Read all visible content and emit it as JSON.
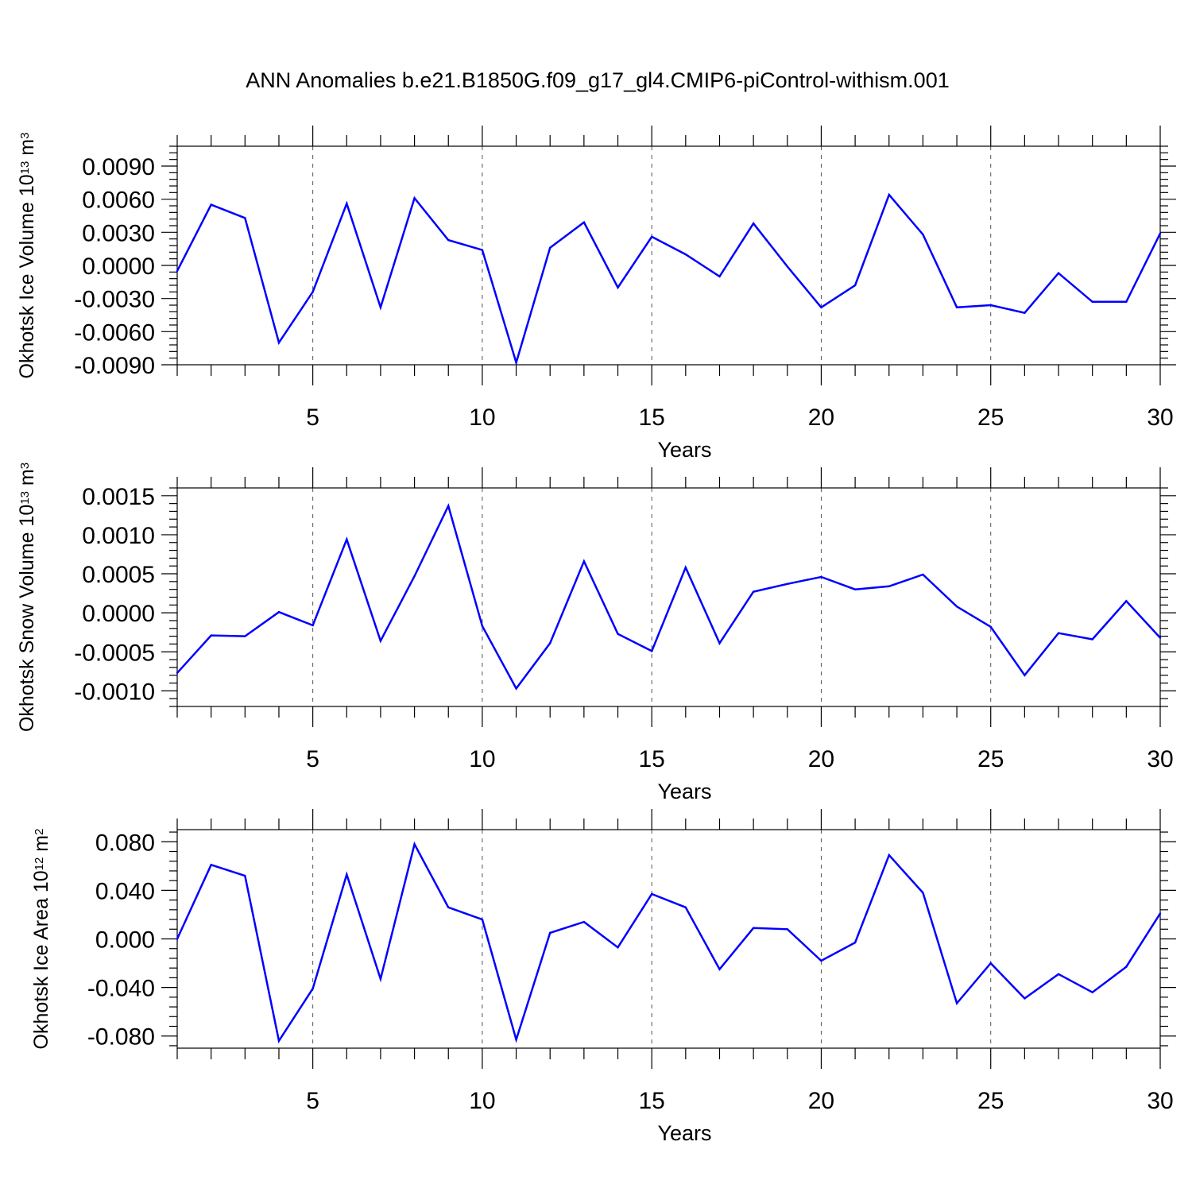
{
  "title": "ANN Anomalies b.e21.B1850G.f09_g17_gl4.CMIP6-piControl-withism.001",
  "colors": {
    "line": "#0000ff",
    "axis": "#000000",
    "grid": "#555555"
  },
  "chart_data": [
    {
      "type": "line",
      "ylabel": {
        "text": "Okhotsk Ice Volume 10",
        "exp": "13",
        "unit": " m",
        "unit_exp": "3"
      },
      "xlabel": "Years",
      "xlim": [
        1,
        30
      ],
      "ylim": [
        -0.009,
        0.0108
      ],
      "grid": "vertical dashed at major x ticks",
      "xticks": [
        5,
        10,
        15,
        20,
        25,
        30
      ],
      "xtick_labels": [
        "5",
        "10",
        "15",
        "20",
        "25",
        "30"
      ],
      "yticks": [
        -0.009,
        -0.006,
        -0.003,
        0,
        0.003,
        0.006,
        0.009
      ],
      "ytick_labels": [
        "-0.0090",
        "-0.0060",
        "-0.0030",
        "0.0000",
        "0.0030",
        "0.0060",
        "0.0090"
      ],
      "x": [
        1,
        2,
        3,
        4,
        5,
        6,
        7,
        8,
        9,
        10,
        11,
        12,
        13,
        14,
        15,
        16,
        17,
        18,
        19,
        20,
        21,
        22,
        23,
        24,
        25,
        26,
        27,
        28,
        29,
        30
      ],
      "values": [
        -0.0005,
        0.0055,
        0.0043,
        -0.007,
        -0.0024,
        0.0056,
        -0.0038,
        0.0061,
        0.0023,
        0.0014,
        -0.0088,
        0.0016,
        0.0039,
        -0.002,
        0.0026,
        0.001,
        -0.001,
        0.0038,
        -0.0001,
        -0.0038,
        -0.0018,
        0.0064,
        0.0028,
        -0.0038,
        -0.0036,
        -0.0043,
        -0.0007,
        -0.0033,
        -0.0033,
        0.0029
      ]
    },
    {
      "type": "line",
      "ylabel": {
        "text": "Okhotsk Snow Volume 10",
        "exp": "13",
        "unit": " m",
        "unit_exp": "3"
      },
      "xlabel": "Years",
      "xlim": [
        1,
        30
      ],
      "ylim": [
        -0.0012,
        0.0016
      ],
      "grid": "vertical dashed at major x ticks",
      "xticks": [
        5,
        10,
        15,
        20,
        25,
        30
      ],
      "xtick_labels": [
        "5",
        "10",
        "15",
        "20",
        "25",
        "30"
      ],
      "yticks": [
        -0.001,
        -0.0005,
        0,
        0.0005,
        0.001,
        0.0015
      ],
      "ytick_labels": [
        "-0.0010",
        "-0.0005",
        "0.0000",
        "0.0005",
        "0.0010",
        "0.0015"
      ],
      "x": [
        1,
        2,
        3,
        4,
        5,
        6,
        7,
        8,
        9,
        10,
        11,
        12,
        13,
        14,
        15,
        16,
        17,
        18,
        19,
        20,
        21,
        22,
        23,
        24,
        25,
        26,
        27,
        28,
        29,
        30
      ],
      "values": [
        -0.00077,
        -0.00029,
        -0.0003,
        1e-05,
        -0.00016,
        0.00094,
        -0.00036,
        0.00047,
        0.00137,
        -0.00017,
        -0.00097,
        -0.00039,
        0.00066,
        -0.00027,
        -0.00049,
        0.00058,
        -0.00039,
        0.00027,
        0.00037,
        0.00046,
        0.0003,
        0.00034,
        0.00049,
        8e-05,
        -0.00018,
        -0.0008,
        -0.00026,
        -0.00034,
        0.00015,
        -0.00032
      ]
    },
    {
      "type": "line",
      "ylabel": {
        "text": "Okhotsk Ice Area 10",
        "exp": "12",
        "unit": " m",
        "unit_exp": "2"
      },
      "xlabel": "Years",
      "xlim": [
        1,
        30
      ],
      "ylim": [
        -0.09,
        0.09
      ],
      "grid": "vertical dashed at major x ticks",
      "xticks": [
        5,
        10,
        15,
        20,
        25,
        30
      ],
      "xtick_labels": [
        "5",
        "10",
        "15",
        "20",
        "25",
        "30"
      ],
      "yticks": [
        -0.08,
        -0.04,
        0,
        0.04,
        0.08
      ],
      "ytick_labels": [
        "-0.080",
        "-0.040",
        "0.000",
        "0.040",
        "0.080"
      ],
      "x": [
        1,
        2,
        3,
        4,
        5,
        6,
        7,
        8,
        9,
        10,
        11,
        12,
        13,
        14,
        15,
        16,
        17,
        18,
        19,
        20,
        21,
        22,
        23,
        24,
        25,
        26,
        27,
        28,
        29,
        30
      ],
      "values": [
        0.0,
        0.061,
        0.052,
        -0.084,
        -0.041,
        0.053,
        -0.033,
        0.078,
        0.026,
        0.016,
        -0.083,
        0.005,
        0.014,
        -0.007,
        0.037,
        0.026,
        -0.025,
        0.009,
        0.008,
        -0.018,
        -0.003,
        0.069,
        0.038,
        -0.053,
        -0.02,
        -0.049,
        -0.029,
        -0.044,
        -0.023,
        0.021
      ]
    }
  ]
}
